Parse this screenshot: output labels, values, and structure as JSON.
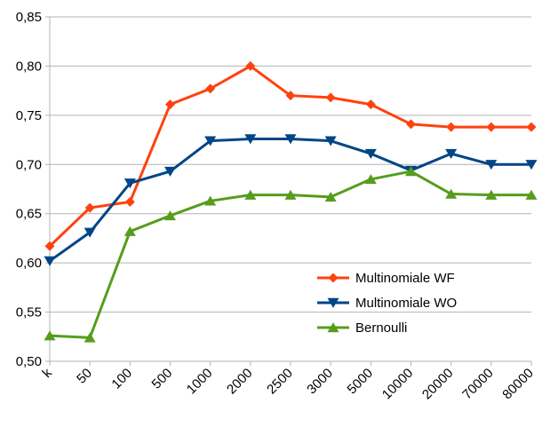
{
  "chart_data": {
    "type": "line",
    "categories": [
      "k",
      "50",
      "100",
      "500",
      "1000",
      "2000",
      "2500",
      "3000",
      "5000",
      "10000",
      "20000",
      "70000",
      "80000"
    ],
    "ylim": [
      0.5,
      0.85
    ],
    "y_ticks": [
      "0,50",
      "0,55",
      "0,60",
      "0,65",
      "0,70",
      "0,75",
      "0,80",
      "0,85"
    ],
    "grid": "horizontal",
    "legend": "right-center",
    "series": [
      {
        "name": "Multinomiale WF",
        "color": "#ff420e",
        "marker": "diamond",
        "values": [
          0.617,
          0.656,
          0.662,
          0.761,
          0.777,
          0.8,
          0.77,
          0.768,
          0.761,
          0.741,
          0.738,
          0.738,
          0.738
        ]
      },
      {
        "name": "Multinomiale WO",
        "color": "#004586",
        "marker": "triangle-down",
        "values": [
          0.602,
          0.631,
          0.681,
          0.693,
          0.724,
          0.726,
          0.726,
          0.724,
          0.711,
          0.694,
          0.711,
          0.7,
          0.7
        ]
      },
      {
        "name": "Bernoulli",
        "color": "#579d1c",
        "marker": "triangle-up",
        "values": [
          0.526,
          0.524,
          0.632,
          0.648,
          0.663,
          0.669,
          0.669,
          0.667,
          0.685,
          0.693,
          0.67,
          0.669,
          0.669
        ]
      }
    ]
  }
}
